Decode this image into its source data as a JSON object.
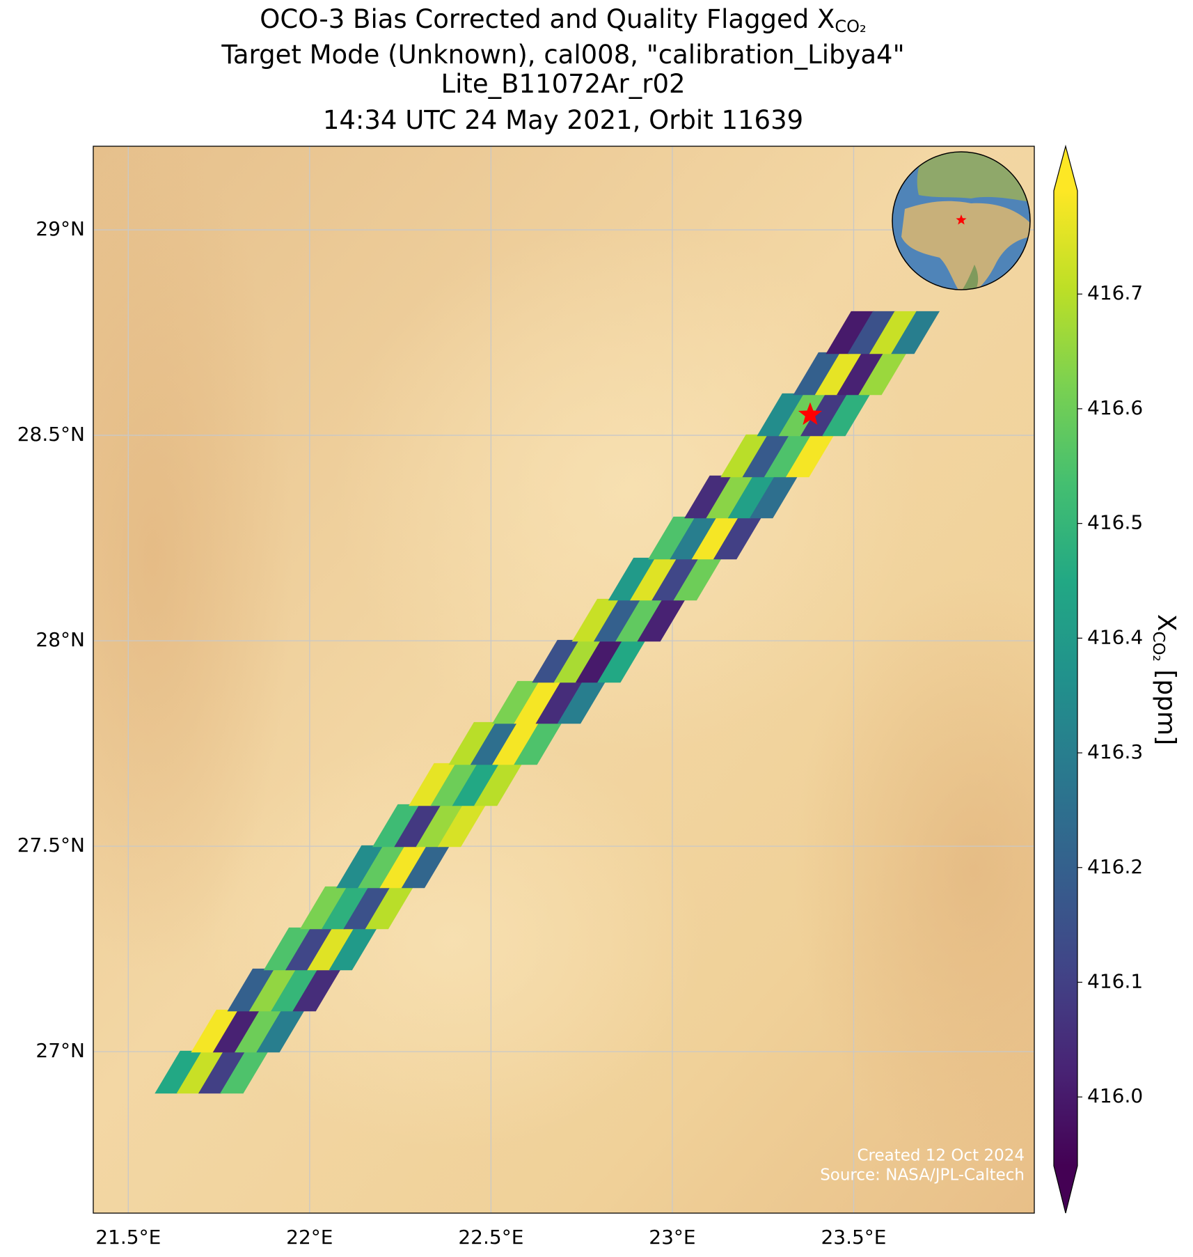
{
  "chart_data": {
    "type": "map",
    "title_lines": [
      {
        "text": "OCO-3 Bias Corrected and Quality Flagged X",
        "subscript": "CO₂"
      },
      {
        "text": "Target Mode (Unknown), cal008, \"calibration_Libya4\""
      },
      {
        "text": "Lite_B11072Ar_r02"
      },
      {
        "text": "14:34 UTC 24 May 2021, Orbit 11639"
      }
    ],
    "xlim": [
      21.4035,
      23.998
    ],
    "ylim": [
      26.607,
      29.2035
    ],
    "xticks": [
      {
        "value": 21.5,
        "label": "21.5°E"
      },
      {
        "value": 22,
        "label": "22°E"
      },
      {
        "value": 22.5,
        "label": "22.5°E"
      },
      {
        "value": 23,
        "label": "23°E"
      },
      {
        "value": 23.5,
        "label": "23.5°E"
      }
    ],
    "yticks": [
      {
        "value": 27,
        "label": "27°N"
      },
      {
        "value": 27.5,
        "label": "27.5°N"
      },
      {
        "value": 28,
        "label": "28°N"
      },
      {
        "value": 28.5,
        "label": "28.5°N"
      },
      {
        "value": 29,
        "label": "29°N"
      }
    ],
    "grid": true,
    "colormap": "viridis",
    "clim": [
      415.94,
      416.79
    ],
    "colorbar_ticks": [
      {
        "value": 416,
        "label": "416.0"
      },
      416.1,
      416.2,
      416.3,
      416.4,
      416.5,
      416.6,
      416.7
    ],
    "colorbar_label": {
      "text": "X",
      "subscript": "CO₂",
      "suffix": " [ppm]"
    },
    "target": {
      "lon": 23.38,
      "lat": 28.55,
      "color": "#ff0000"
    },
    "credits": [
      "Created 12 Oct 2024",
      "Source: NASA/JPL-Caltech"
    ],
    "x": [
      21.64,
      21.7,
      21.76,
      21.82,
      21.74,
      21.8,
      21.86,
      21.92,
      21.84,
      21.9,
      21.96,
      22.02,
      21.94,
      22.0,
      22.06,
      22.12,
      22.04,
      22.1,
      22.16,
      22.22,
      22.14,
      22.2,
      22.26,
      22.32,
      22.24,
      22.3,
      22.36,
      22.42,
      22.34,
      22.4,
      22.46,
      22.52,
      22.45,
      22.51,
      22.57,
      22.63,
      22.57,
      22.63,
      22.69,
      22.75,
      22.68,
      22.74,
      22.8,
      22.86,
      22.79,
      22.85,
      22.91,
      22.97,
      22.89,
      22.95,
      23.01,
      23.07,
      23.0,
      23.06,
      23.12,
      23.18,
      23.1,
      23.16,
      23.22,
      23.28,
      23.2,
      23.26,
      23.32,
      23.38,
      23.3,
      23.36,
      23.42,
      23.48,
      23.4,
      23.46,
      23.52,
      23.58,
      23.49,
      23.55,
      23.61,
      23.67
    ],
    "y": [
      26.95,
      26.95,
      26.95,
      26.95,
      27.05,
      27.05,
      27.05,
      27.05,
      27.15,
      27.15,
      27.15,
      27.15,
      27.25,
      27.25,
      27.25,
      27.25,
      27.35,
      27.35,
      27.35,
      27.35,
      27.45,
      27.45,
      27.45,
      27.45,
      27.55,
      27.55,
      27.55,
      27.55,
      27.65,
      27.65,
      27.65,
      27.65,
      27.75,
      27.75,
      27.75,
      27.75,
      27.85,
      27.85,
      27.85,
      27.85,
      27.95,
      27.95,
      27.95,
      27.95,
      28.05,
      28.05,
      28.05,
      28.05,
      28.15,
      28.15,
      28.15,
      28.15,
      28.25,
      28.25,
      28.25,
      28.25,
      28.35,
      28.35,
      28.35,
      28.35,
      28.45,
      28.45,
      28.45,
      28.45,
      28.55,
      28.55,
      28.55,
      28.55,
      28.65,
      28.65,
      28.65,
      28.65,
      28.75,
      28.75,
      28.75,
      28.75
    ],
    "values": [
      416.45,
      416.72,
      416.1,
      416.55,
      416.78,
      416.02,
      416.6,
      416.3,
      416.2,
      416.65,
      416.5,
      416.05,
      416.55,
      416.12,
      416.75,
      416.4,
      416.62,
      416.48,
      416.15,
      416.7,
      416.35,
      416.58,
      416.78,
      416.22,
      416.52,
      416.08,
      416.66,
      416.74,
      416.76,
      416.6,
      416.45,
      416.7,
      416.7,
      416.25,
      416.78,
      416.55,
      416.62,
      416.78,
      416.05,
      416.3,
      416.15,
      416.68,
      416.0,
      416.45,
      416.72,
      416.2,
      416.58,
      416.02,
      416.4,
      416.75,
      416.12,
      416.6,
      416.55,
      416.3,
      416.78,
      416.1,
      416.05,
      416.64,
      416.42,
      416.25,
      416.7,
      416.18,
      416.55,
      416.78,
      416.35,
      416.6,
      416.08,
      416.48,
      416.2,
      416.76,
      416.02,
      416.66,
      416.0,
      416.15,
      416.72,
      416.3
    ]
  }
}
